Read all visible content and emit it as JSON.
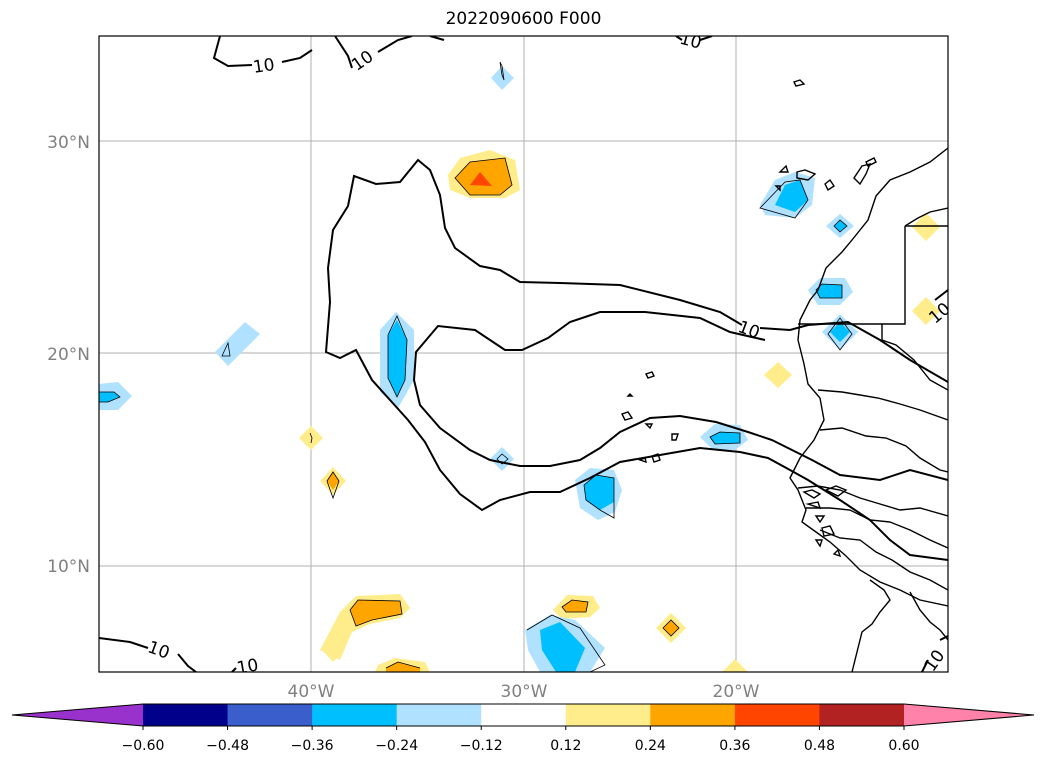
{
  "map": {
    "title": "2022090600 F000",
    "lat_ticks": [
      "30°N",
      "20°N",
      "10°N"
    ],
    "lon_ticks": [
      "40°W",
      "30°W",
      "20°W"
    ],
    "contour_label": "10"
  },
  "colorbar": {
    "ticks": [
      "−0.60",
      "−0.48",
      "−0.36",
      "−0.24",
      "−0.12",
      "0.12",
      "0.24",
      "0.36",
      "0.48",
      "0.60"
    ],
    "colors": [
      "#9932cc",
      "#00008b",
      "#3a5fcd",
      "#00bfff",
      "#b0e2ff",
      "#ffffff",
      "#ffec8b",
      "#ffa500",
      "#ff4500",
      "#b22222",
      "#ff82ab"
    ]
  }
}
